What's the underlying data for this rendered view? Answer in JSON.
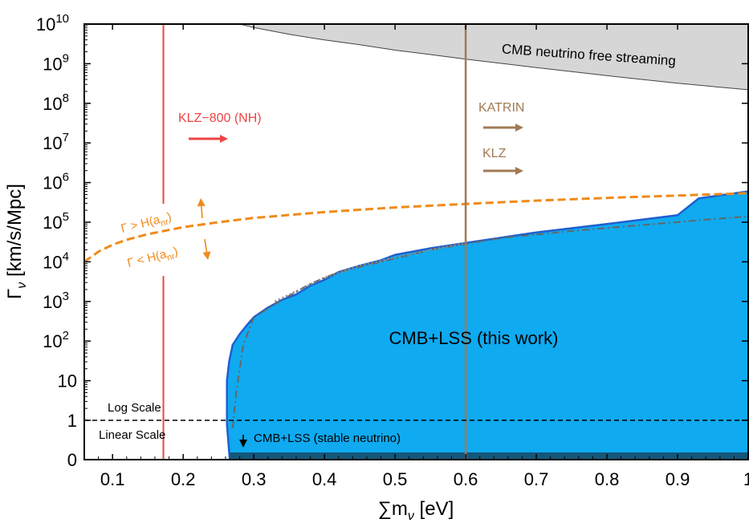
{
  "chart_data": {
    "type": "area",
    "xlabel": "∑m",
    "xlabel_sub": "ν",
    "xlabel_unit": " [eV]",
    "ylabel": "Γ",
    "ylabel_sub": "ν",
    "ylabel_unit": " [km/s/Mpc]",
    "xlim": [
      0.06,
      1.0
    ],
    "x_ticks": [
      0.1,
      0.2,
      0.3,
      0.4,
      0.5,
      0.6,
      0.7,
      0.8,
      0.9,
      1.0
    ],
    "x_tick_labels": [
      "0.1",
      "0.2",
      "0.3",
      "0.4",
      "0.5",
      "0.6",
      "0.7",
      "0.8",
      "0.9",
      "1"
    ],
    "y_scale": "hybrid: linear from 0 to 1, logarithmic from 1 to 1e10",
    "y_ticks": [
      {
        "value": 0,
        "label": "0"
      },
      {
        "value": 1,
        "label": "1"
      },
      {
        "value": 10,
        "label": "10"
      },
      {
        "value": 100,
        "label": "10",
        "exp": "2"
      },
      {
        "value": 1000,
        "label": "10",
        "exp": "3"
      },
      {
        "value": 10000,
        "label": "10",
        "exp": "4"
      },
      {
        "value": 100000,
        "label": "10",
        "exp": "5"
      },
      {
        "value": 1000000,
        "label": "10",
        "exp": "6"
      },
      {
        "value": 10000000,
        "label": "10",
        "exp": "7"
      },
      {
        "value": 100000000,
        "label": "10",
        "exp": "8"
      },
      {
        "value": 1000000000,
        "label": "10",
        "exp": "9"
      },
      {
        "value": 10000000000,
        "label": "10",
        "exp": "10"
      }
    ],
    "grid": false,
    "colors": {
      "cmb_lss_region": "#0faaf0",
      "cmb_lss_edge": "#1f5fd0",
      "stable_band": "#14567a",
      "cmb_free_streaming": "#d6d6d6",
      "klz800": "#ee4444",
      "katrin": "#a07a55",
      "hubble": "#f08a1a",
      "dashdot": "#666666"
    },
    "series": [
      {
        "name": "CMB+LSS (this work)",
        "kind": "filled upper bound",
        "x": [
          0.266,
          0.262,
          0.262,
          0.265,
          0.27,
          0.28,
          0.29,
          0.3,
          0.32,
          0.34,
          0.36,
          0.38,
          0.4,
          0.42,
          0.45,
          0.48,
          0.5,
          0.55,
          0.6,
          0.7,
          0.8,
          0.9,
          0.93,
          1.0
        ],
        "y": [
          0,
          0.9,
          10,
          30,
          80,
          150,
          250,
          400,
          700,
          1100,
          1500,
          2500,
          3500,
          5500,
          8000,
          11000,
          15000,
          22000,
          30000,
          55000,
          90000,
          150000,
          400000,
          600000
        ]
      },
      {
        "name": "",
        "kind": "dash-dot line",
        "x": [
          0.27,
          0.275,
          0.285,
          0.3,
          0.34,
          0.38,
          0.42,
          0.48,
          0.55,
          0.65,
          0.75,
          0.85,
          0.95,
          1.0
        ],
        "y": [
          0.8,
          5,
          80,
          400,
          1100,
          2800,
          5500,
          10000,
          20000,
          40000,
          60000,
          85000,
          120000,
          140000
        ]
      },
      {
        "name": "",
        "kind": "dotted line",
        "x": [
          0.33,
          0.36,
          0.4,
          0.45,
          0.5,
          0.55,
          0.6
        ],
        "y": [
          1000,
          1800,
          4000,
          8000,
          13000,
          20000,
          30000
        ]
      },
      {
        "name": "Γ > H(a_nr)",
        "kind": "dashed line",
        "x": [
          0.06,
          0.08,
          0.1,
          0.12,
          0.15,
          0.2,
          0.25,
          0.3,
          0.4,
          0.5,
          0.6,
          0.7,
          0.8,
          0.9,
          1.0
        ],
        "y": [
          10000,
          18000,
          27000,
          36000,
          50000,
          75000,
          100000,
          128000,
          180000,
          236000,
          290000,
          350000,
          410000,
          470000,
          540000
        ]
      },
      {
        "name": "CMB neutrino free streaming",
        "kind": "filled lower bound",
        "x": [
          0.28,
          0.3,
          0.35,
          0.4,
          0.45,
          0.5,
          0.55,
          0.6,
          0.7,
          0.8,
          0.9,
          1.0
        ],
        "y": [
          10000000000,
          8200000000,
          5500000000,
          4000000000,
          3000000000,
          2200000000,
          1700000000,
          1300000000,
          800000000,
          500000000,
          320000000,
          220000000
        ]
      }
    ],
    "vertical_lines": [
      {
        "name": "KLZ−800 (NH)",
        "x": 0.172
      },
      {
        "name": "KATRIN",
        "x": 0.6
      }
    ],
    "annotations": {
      "region_label": "CMB+LSS (this work)",
      "free_streaming_label": "CMB neutrino free streaming",
      "klz800_label": "KLZ−800 (NH)",
      "katrin_label": "KATRIN",
      "klz_label": "KLZ",
      "gamma_gt": "Γ > H(a",
      "gamma_lt": "Γ < H(a",
      "gamma_sub": "nr",
      "gamma_close": ")",
      "log_scale": "Log Scale",
      "linear_scale": "Linear Scale",
      "stable_label": "CMB+LSS (stable neutrino)",
      "stable_arrow": "↓"
    }
  }
}
